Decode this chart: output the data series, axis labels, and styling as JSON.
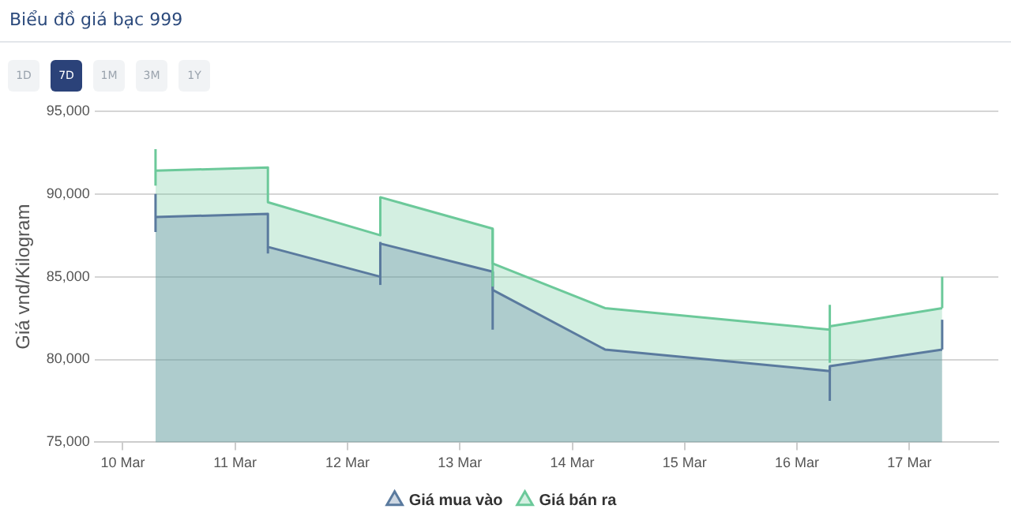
{
  "chart_data": {
    "type": "area",
    "title": "Biểu đồ giá bạc 999",
    "ylabel": "Giá vnd/Kilogram",
    "annotations": [
      "1D",
      "7D",
      "1M",
      "3M",
      "1Y"
    ],
    "xlim": [
      "--03-09T18:00",
      "--03-17T19:00"
    ],
    "xticks": [
      {
        "value": "--03-10",
        "label": "10 Mar"
      },
      {
        "value": "--03-11",
        "label": "11 Mar"
      },
      {
        "value": "--03-12",
        "label": "12 Mar"
      },
      {
        "value": "--03-13",
        "label": "13 Mar"
      },
      {
        "value": "--03-14",
        "label": "14 Mar"
      },
      {
        "value": "--03-15",
        "label": "15 Mar"
      },
      {
        "value": "--03-16",
        "label": "16 Mar"
      },
      {
        "value": "--03-17",
        "label": "17 Mar"
      }
    ],
    "ylim": [
      75000,
      95000
    ],
    "yticks": [
      {
        "value": 75000,
        "label": "75,000"
      },
      {
        "value": 80000,
        "label": "80,000"
      },
      {
        "value": 85000,
        "label": "85,000"
      },
      {
        "value": 90000,
        "label": "90,000"
      },
      {
        "value": 95000,
        "label": "95,000"
      }
    ],
    "grid": "y",
    "legend": "bottom",
    "marker": "none",
    "series": [
      {
        "name": "Giá mua vào",
        "color": "#5a7a9e",
        "x": [
          "--03-10T07:00",
          "--03-11T07:00",
          "--03-11T07:00",
          "--03-12T07:00",
          "--03-12T07:00",
          "--03-13T07:00",
          "--03-13T07:00",
          "--03-14T07:00",
          "--03-16T07:00",
          "--03-16T07:00",
          "--03-17T07:00"
        ],
        "values": [
          88600,
          88800,
          86800,
          85000,
          87000,
          85300,
          84200,
          80600,
          79300,
          79600,
          80600
        ],
        "errors": [
          [
            87700,
            90000
          ],
          null,
          [
            86400,
            86800
          ],
          null,
          [
            84500,
            87100
          ],
          null,
          [
            81800,
            85300
          ],
          null,
          null,
          [
            77500,
            79600
          ],
          [
            80600,
            82400
          ]
        ]
      },
      {
        "name": "Giá bán ra",
        "color": "#6cc99a",
        "x": [
          "--03-10T07:00",
          "--03-11T07:00",
          "--03-11T07:00",
          "--03-12T07:00",
          "--03-12T07:00",
          "--03-13T07:00",
          "--03-13T07:00",
          "--03-14T07:00",
          "--03-16T07:00",
          "--03-16T07:00",
          "--03-17T07:00"
        ],
        "values": [
          91400,
          91600,
          89500,
          87500,
          89800,
          87900,
          85800,
          83100,
          81800,
          82000,
          83100
        ],
        "errors": [
          [
            90500,
            92700
          ],
          null,
          null,
          null,
          null,
          null,
          [
            84400,
            87900
          ],
          null,
          null,
          [
            79800,
            83300
          ],
          [
            83100,
            85000
          ]
        ]
      }
    ]
  }
}
